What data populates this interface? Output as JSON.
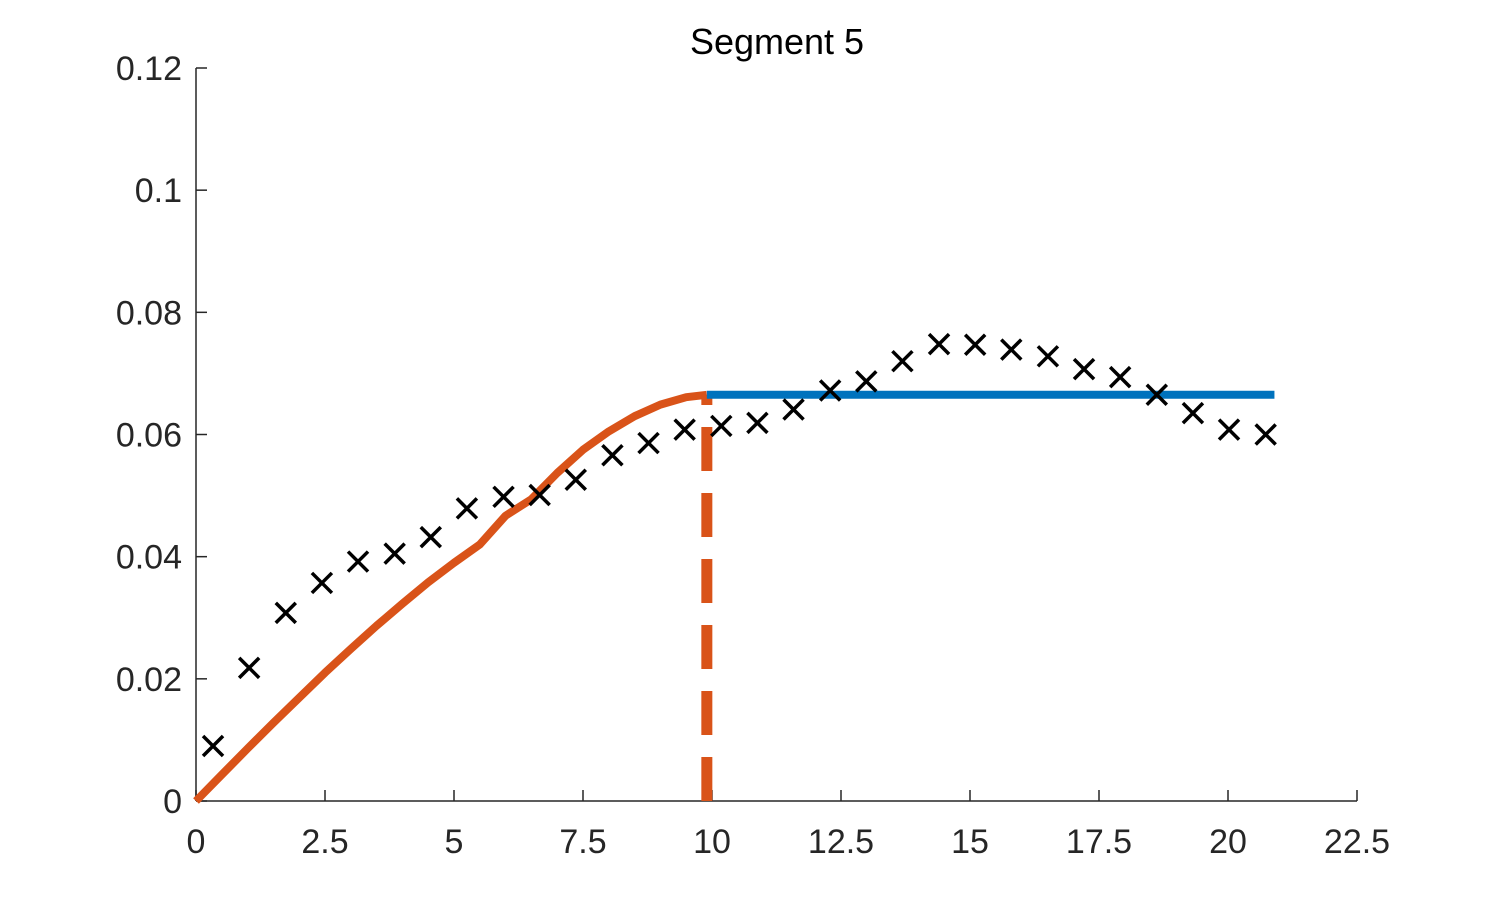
{
  "chart_data": {
    "type": "line",
    "title": "Segment 5",
    "xlabel": "",
    "ylabel": "",
    "xlim": [
      0,
      22.5
    ],
    "ylim": [
      0,
      0.12
    ],
    "x_ticks": [
      0,
      2.5,
      5,
      7.5,
      10,
      12.5,
      15,
      17.5,
      20,
      22.5
    ],
    "x_tick_labels": [
      "0",
      "2.5",
      "5",
      "7.5",
      "10",
      "12.5",
      "15",
      "17.5",
      "20",
      "22.5"
    ],
    "y_ticks": [
      0,
      0.02,
      0.04,
      0.06,
      0.08,
      0.1,
      0.12
    ],
    "y_tick_labels": [
      "0",
      "0.02",
      "0.04",
      "0.06",
      "0.08",
      "0.1",
      "0.12"
    ],
    "grid": false,
    "legend": "none",
    "series": [
      {
        "kind": "scatter",
        "marker": "x",
        "color": "#000000",
        "x": [
          0.33,
          1.03,
          1.74,
          2.44,
          3.14,
          3.85,
          4.55,
          5.25,
          5.96,
          6.66,
          7.36,
          8.07,
          8.77,
          9.47,
          10.18,
          10.88,
          11.58,
          12.29,
          12.99,
          13.69,
          14.4,
          15.1,
          15.8,
          16.51,
          17.21,
          17.91,
          18.62,
          19.32,
          20.02,
          20.73
        ],
        "y": [
          0.009,
          0.0218,
          0.0308,
          0.0357,
          0.0392,
          0.0405,
          0.0432,
          0.0479,
          0.0498,
          0.0501,
          0.0526,
          0.0566,
          0.0586,
          0.0608,
          0.0614,
          0.0619,
          0.0641,
          0.0672,
          0.0687,
          0.072,
          0.0748,
          0.0747,
          0.0739,
          0.0728,
          0.0707,
          0.0694,
          0.0665,
          0.0635,
          0.0608,
          0.06
        ]
      },
      {
        "kind": "curve",
        "style": "solid",
        "color": "#D95319",
        "x": [
          0,
          0.5,
          1,
          1.5,
          2,
          2.5,
          3,
          3.5,
          4,
          4.5,
          5,
          5.5,
          6,
          6.5,
          7,
          7.5,
          8,
          8.5,
          9,
          9.5,
          9.9
        ],
        "y": [
          0,
          0.0043,
          0.0086,
          0.0128,
          0.0169,
          0.021,
          0.0249,
          0.0287,
          0.0323,
          0.0358,
          0.039,
          0.042,
          0.0467,
          0.0494,
          0.0537,
          0.0575,
          0.0605,
          0.063,
          0.0649,
          0.0661,
          0.0665
        ]
      },
      {
        "kind": "vline",
        "style": "dashed",
        "color": "#D95319",
        "x": 9.9,
        "y_from": 0,
        "y_to": 0.0665
      },
      {
        "kind": "hline",
        "style": "solid",
        "color": "#0072BD",
        "y": 0.0665,
        "x_from": 9.9,
        "x_to": 20.9
      }
    ]
  }
}
